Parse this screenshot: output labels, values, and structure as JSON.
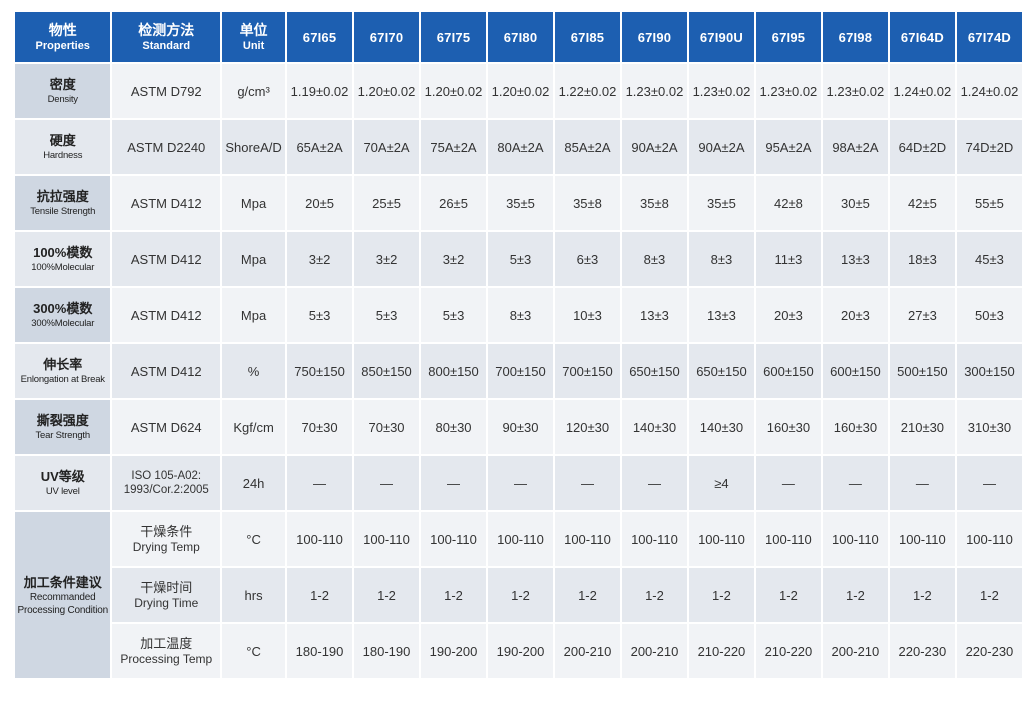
{
  "header": {
    "properties": {
      "zh": "物性",
      "en": "Properties"
    },
    "standard": {
      "zh": "检测方法",
      "en": "Standard"
    },
    "unit": {
      "zh": "单位",
      "en": "Unit"
    },
    "models": [
      "67I65",
      "67I70",
      "67I75",
      "67I80",
      "67I85",
      "67I90",
      "67I90U",
      "67I95",
      "67I98",
      "67I64D",
      "67I74D"
    ]
  },
  "rows": [
    {
      "zh": "密度",
      "en": "Density",
      "standard": "ASTM D792",
      "unit": "g/cm³",
      "values": [
        "1.19±0.02",
        "1.20±0.02",
        "1.20±0.02",
        "1.20±0.02",
        "1.22±0.02",
        "1.23±0.02",
        "1.23±0.02",
        "1.23±0.02",
        "1.23±0.02",
        "1.24±0.02",
        "1.24±0.02"
      ]
    },
    {
      "zh": "硬度",
      "en": "Hardness",
      "standard": "ASTM D2240",
      "unit": "ShoreA/D",
      "values": [
        "65A±2A",
        "70A±2A",
        "75A±2A",
        "80A±2A",
        "85A±2A",
        "90A±2A",
        "90A±2A",
        "95A±2A",
        "98A±2A",
        "64D±2D",
        "74D±2D"
      ]
    },
    {
      "zh": "抗拉强度",
      "en": "Tensile Strength",
      "standard": "ASTM D412",
      "unit": "Mpa",
      "values": [
        "20±5",
        "25±5",
        "26±5",
        "35±5",
        "35±8",
        "35±8",
        "35±5",
        "42±8",
        "30±5",
        "42±5",
        "55±5"
      ]
    },
    {
      "zh": "100%模数",
      "en": "100%Molecular",
      "standard": "ASTM D412",
      "unit": "Mpa",
      "values": [
        "3±2",
        "3±2",
        "3±2",
        "5±3",
        "6±3",
        "8±3",
        "8±3",
        "11±3",
        "13±3",
        "18±3",
        "45±3"
      ]
    },
    {
      "zh": "300%模数",
      "en": "300%Molecular",
      "standard": "ASTM D412",
      "unit": "Mpa",
      "values": [
        "5±3",
        "5±3",
        "5±3",
        "8±3",
        "10±3",
        "13±3",
        "13±3",
        "20±3",
        "20±3",
        "27±3",
        "50±3"
      ]
    },
    {
      "zh": "伸长率",
      "en": "Enlongation at Break",
      "standard": "ASTM D412",
      "unit": "%",
      "values": [
        "750±150",
        "850±150",
        "800±150",
        "700±150",
        "700±150",
        "650±150",
        "650±150",
        "600±150",
        "600±150",
        "500±150",
        "300±150"
      ]
    },
    {
      "zh": "撕裂强度",
      "en": "Tear Strength",
      "standard": "ASTM D624",
      "unit": "Kgf/cm",
      "values": [
        "70±30",
        "70±30",
        "80±30",
        "90±30",
        "120±30",
        "140±30",
        "140±30",
        "160±30",
        "160±30",
        "210±30",
        "310±30"
      ]
    },
    {
      "zh": "UV等级",
      "en": "UV level",
      "standard": "ISO 105-A02: 1993/Cor.2:2005",
      "unit": "24h",
      "values": [
        "—",
        "—",
        "—",
        "—",
        "—",
        "—",
        "≥4",
        "—",
        "—",
        "—",
        "—"
      ]
    }
  ],
  "processing": {
    "zh": "加工条件建议",
    "en": "Recommanded Processing Condition",
    "rows": [
      {
        "zh": "干燥条件",
        "en": "Drying Temp",
        "unit": "°C",
        "values": [
          "100-110",
          "100-110",
          "100-110",
          "100-110",
          "100-110",
          "100-110",
          "100-110",
          "100-110",
          "100-110",
          "100-110",
          "100-110"
        ]
      },
      {
        "zh": "干燥时间",
        "en": "Drying Time",
        "unit": "hrs",
        "values": [
          "1-2",
          "1-2",
          "1-2",
          "1-2",
          "1-2",
          "1-2",
          "1-2",
          "1-2",
          "1-2",
          "1-2",
          "1-2"
        ]
      },
      {
        "zh": "加工温度",
        "en": "Processing Temp",
        "unit": "°C",
        "values": [
          "180-190",
          "180-190",
          "190-200",
          "190-200",
          "200-210",
          "200-210",
          "210-220",
          "210-220",
          "200-210",
          "220-230",
          "220-230"
        ]
      }
    ]
  }
}
